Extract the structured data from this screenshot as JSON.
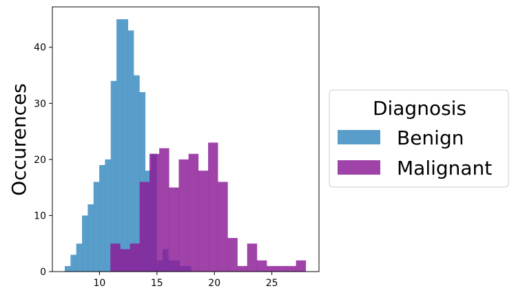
{
  "chart_data": {
    "type": "bar",
    "title": "",
    "xlabel": "",
    "ylabel": "Occurences",
    "xlim": [
      5.9,
      29.1
    ],
    "ylim": [
      0,
      47.2
    ],
    "xticks": [
      10,
      15,
      20,
      25
    ],
    "yticks": [
      0,
      10,
      20,
      30,
      40
    ],
    "grid": false,
    "legend": {
      "title": "Diagnosis",
      "placement": "right-outside"
    },
    "series": [
      {
        "name": "Benign",
        "color": "#2F86BE",
        "opacity": 0.8,
        "bins": [
          {
            "x0": 6.98,
            "x1": 7.48,
            "count": 1
          },
          {
            "x0": 7.48,
            "x1": 7.98,
            "count": 3
          },
          {
            "x0": 7.98,
            "x1": 8.48,
            "count": 5
          },
          {
            "x0": 8.48,
            "x1": 8.98,
            "count": 10
          },
          {
            "x0": 8.98,
            "x1": 9.48,
            "count": 12
          },
          {
            "x0": 9.48,
            "x1": 9.98,
            "count": 16
          },
          {
            "x0": 9.98,
            "x1": 10.48,
            "count": 19
          },
          {
            "x0": 10.48,
            "x1": 10.98,
            "count": 20
          },
          {
            "x0": 10.98,
            "x1": 11.48,
            "count": 34
          },
          {
            "x0": 11.48,
            "x1": 11.98,
            "count": 45
          },
          {
            "x0": 11.98,
            "x1": 12.48,
            "count": 45
          },
          {
            "x0": 12.48,
            "x1": 12.98,
            "count": 43
          },
          {
            "x0": 12.98,
            "x1": 13.48,
            "count": 35
          },
          {
            "x0": 13.48,
            "x1": 13.98,
            "count": 32
          },
          {
            "x0": 13.98,
            "x1": 14.48,
            "count": 18
          },
          {
            "x0": 14.48,
            "x1": 14.98,
            "count": 21
          },
          {
            "x0": 14.98,
            "x1": 15.48,
            "count": 2
          },
          {
            "x0": 15.48,
            "x1": 15.98,
            "count": 4
          },
          {
            "x0": 15.98,
            "x1": 16.48,
            "count": 2
          },
          {
            "x0": 16.48,
            "x1": 16.98,
            "count": 2
          },
          {
            "x0": 16.98,
            "x1": 17.48,
            "count": 1
          },
          {
            "x0": 17.48,
            "x1": 17.98,
            "count": 1
          }
        ]
      },
      {
        "name": "Malignant",
        "color": "#8B1A96",
        "opacity": 0.82,
        "bins": [
          {
            "x0": 10.95,
            "x1": 11.8,
            "count": 5
          },
          {
            "x0": 11.8,
            "x1": 12.65,
            "count": 4
          },
          {
            "x0": 12.65,
            "x1": 13.5,
            "count": 5
          },
          {
            "x0": 13.5,
            "x1": 14.35,
            "count": 16
          },
          {
            "x0": 14.35,
            "x1": 15.2,
            "count": 21
          },
          {
            "x0": 15.2,
            "x1": 16.05,
            "count": 22
          },
          {
            "x0": 16.05,
            "x1": 16.9,
            "count": 15
          },
          {
            "x0": 16.9,
            "x1": 17.75,
            "count": 20
          },
          {
            "x0": 17.75,
            "x1": 18.6,
            "count": 21
          },
          {
            "x0": 18.6,
            "x1": 19.45,
            "count": 18
          },
          {
            "x0": 19.45,
            "x1": 20.3,
            "count": 23
          },
          {
            "x0": 20.3,
            "x1": 21.15,
            "count": 16
          },
          {
            "x0": 21.15,
            "x1": 22.0,
            "count": 6
          },
          {
            "x0": 22.0,
            "x1": 22.85,
            "count": 1
          },
          {
            "x0": 22.85,
            "x1": 23.7,
            "count": 5
          },
          {
            "x0": 23.7,
            "x1": 24.55,
            "count": 2
          },
          {
            "x0": 24.55,
            "x1": 25.4,
            "count": 1
          },
          {
            "x0": 25.4,
            "x1": 26.25,
            "count": 1
          },
          {
            "x0": 26.25,
            "x1": 27.1,
            "count": 1
          },
          {
            "x0": 27.1,
            "x1": 27.95,
            "count": 2
          }
        ]
      }
    ]
  }
}
